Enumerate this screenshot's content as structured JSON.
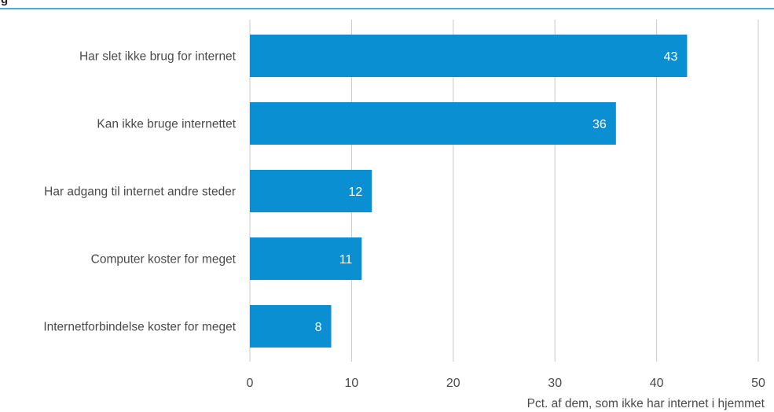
{
  "header": {
    "title_fragment": "g"
  },
  "colors": {
    "bar": "#0a8fd3",
    "rule": "#0a8fd3",
    "grid": "#c9c9c9",
    "text": "#4a4a4a",
    "value_text": "#ffffff"
  },
  "chart_data": {
    "type": "bar",
    "orientation": "horizontal",
    "categories": [
      "Har slet ikke brug for internet",
      "Kan ikke bruge internettet",
      "Har adgang til internet andre steder",
      "Computer koster for meget",
      "Internetforbindelse koster for meget"
    ],
    "values": [
      43,
      36,
      12,
      11,
      8
    ],
    "xlim": [
      0,
      50
    ],
    "xticks": [
      0,
      10,
      20,
      30,
      40,
      50
    ],
    "xlabel": "Pct. af dem, som ikke har internet i hjemmet",
    "ylabel": "",
    "grid": "vertical",
    "data_labels": true,
    "legend": "none"
  }
}
